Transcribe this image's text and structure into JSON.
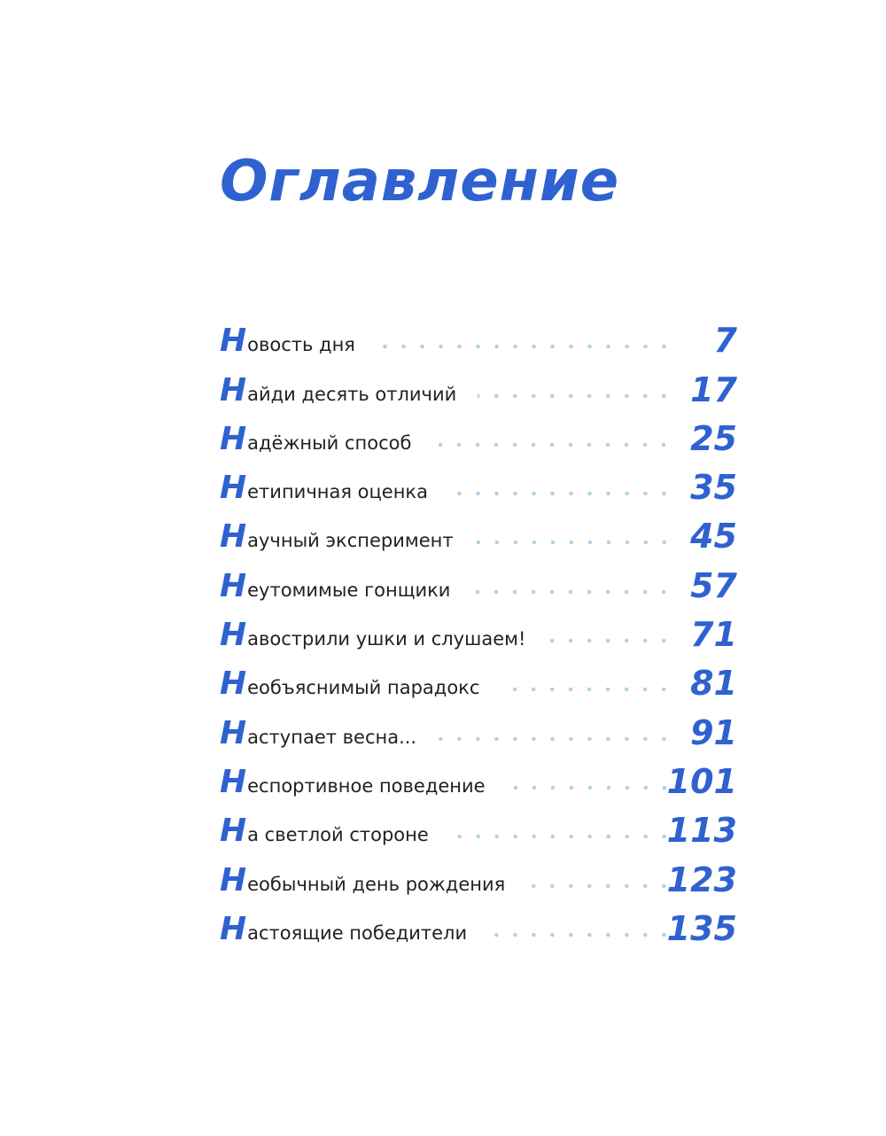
{
  "title": "Оглавление",
  "accent_color": "#2f62d0",
  "entries": [
    {
      "title": "Новость дня",
      "page": "7"
    },
    {
      "title": "Найди десять отличий",
      "page": "17"
    },
    {
      "title": "Надёжный способ",
      "page": "25"
    },
    {
      "title": "Нетипичная оценка",
      "page": "35"
    },
    {
      "title": "Научный эксперимент",
      "page": "45"
    },
    {
      "title": "Неутомимые гонщики",
      "page": "57"
    },
    {
      "title": "Навострили ушки и слушаем!",
      "page": "71"
    },
    {
      "title": "Необъяснимый парадокс",
      "page": "81"
    },
    {
      "title": "Наступает весна...",
      "page": "91"
    },
    {
      "title": "Неспортивное поведение",
      "page": "101"
    },
    {
      "title": "На светлой стороне",
      "page": "113"
    },
    {
      "title": "Необычный день рождения",
      "page": "123"
    },
    {
      "title": "Настоящие победители",
      "page": "135"
    }
  ]
}
